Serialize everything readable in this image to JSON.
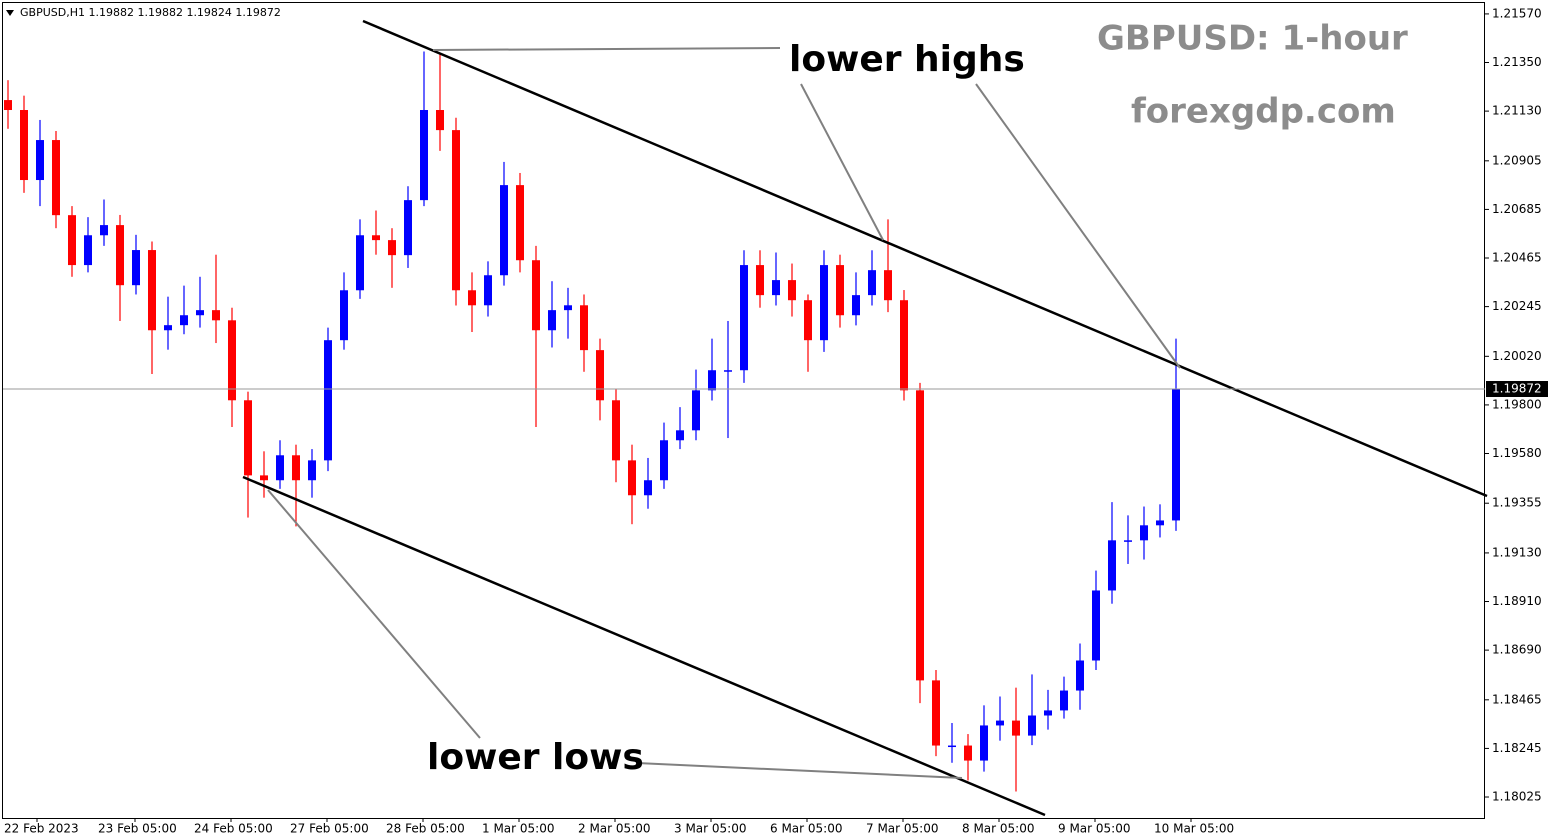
{
  "chart_data": {
    "type": "candlestick",
    "header": "GBPUSD,H1  1.19882 1.19882 1.19824 1.19872",
    "title": "GBPUSD: 1-hour",
    "subtitle": "forexgdp.com",
    "annotations": [
      "lower highs",
      "lower lows"
    ],
    "up_color": "#0000ff",
    "down_color": "#ff0000",
    "last_price": 1.19872,
    "ylim": [
      1.1793,
      1.21633
    ],
    "yticks": [
      {
        "value": 1.2157,
        "label": "1.21570"
      },
      {
        "value": 1.2135,
        "label": "1.21350"
      },
      {
        "value": 1.2113,
        "label": "1.21130"
      },
      1.20905,
      1.20685,
      1.20465,
      1.20245,
      {
        "value": 1.2002,
        "label": "1.20020"
      },
      {
        "value": 1.198,
        "label": "1.19800"
      },
      {
        "value": 1.1958,
        "label": "1.19580"
      },
      1.19355,
      {
        "value": 1.1913,
        "label": "1.19130"
      },
      {
        "value": 1.1891,
        "label": "1.18910"
      },
      {
        "value": 1.1869,
        "label": "1.18690"
      },
      1.18465,
      1.18245,
      1.18025
    ],
    "x_labels": [
      "22 Feb 2023",
      "23 Feb 05:00",
      "24 Feb 05:00",
      "27 Feb 05:00",
      "28 Feb 05:00",
      "1 Mar 05:00",
      "2 Mar 05:00",
      "3 Mar 05:00",
      "6 Mar 05:00",
      "7 Mar 05:00",
      "8 Mar 05:00",
      "9 Mar 05:00",
      "10 Mar 05:00"
    ],
    "candles": [
      [
        1.2118,
        1.2127,
        1.2105,
        1.21135
      ],
      [
        1.21135,
        1.212,
        1.2076,
        1.20818
      ],
      [
        1.20818,
        1.2109,
        1.207,
        1.20999
      ],
      [
        1.20999,
        1.2104,
        1.206,
        1.20659
      ],
      [
        1.20659,
        1.207,
        1.2038,
        1.20433
      ],
      [
        1.20433,
        1.2065,
        1.204,
        1.20568
      ],
      [
        1.20568,
        1.2073,
        1.2052,
        1.20614
      ],
      [
        1.20614,
        1.2066,
        1.2018,
        1.20342
      ],
      [
        1.20342,
        1.2057,
        1.203,
        1.20501
      ],
      [
        1.20501,
        1.2054,
        1.1994,
        1.20138
      ],
      [
        1.20138,
        1.2029,
        1.2005,
        1.20161
      ],
      [
        1.20161,
        1.2034,
        1.2012,
        1.20206
      ],
      [
        1.20206,
        1.2038,
        1.2015,
        1.20229
      ],
      [
        1.20229,
        1.2048,
        1.2008,
        1.20183
      ],
      [
        1.20183,
        1.2024,
        1.197,
        1.19821
      ],
      [
        1.19821,
        1.1986,
        1.1929,
        1.19481
      ],
      [
        1.19481,
        1.1959,
        1.1938,
        1.19459
      ],
      [
        1.19459,
        1.1964,
        1.1942,
        1.19572
      ],
      [
        1.19572,
        1.1962,
        1.1925,
        1.19459
      ],
      [
        1.19459,
        1.196,
        1.1938,
        1.19549
      ],
      [
        1.19549,
        1.2015,
        1.195,
        1.20093
      ],
      [
        1.20093,
        1.204,
        1.2005,
        1.20319
      ],
      [
        1.20319,
        1.2064,
        1.2028,
        1.20568
      ],
      [
        1.20568,
        1.2068,
        1.2048,
        1.20546
      ],
      [
        1.20546,
        1.206,
        1.2033,
        1.20478
      ],
      [
        1.20478,
        1.2079,
        1.2042,
        1.20727
      ],
      [
        1.20727,
        1.214,
        1.207,
        1.21135
      ],
      [
        1.21135,
        1.2139,
        1.2095,
        1.21044
      ],
      [
        1.21044,
        1.211,
        1.2025,
        1.20319
      ],
      [
        1.20319,
        1.204,
        1.2013,
        1.20251
      ],
      [
        1.20251,
        1.2045,
        1.202,
        1.20387
      ],
      [
        1.20387,
        1.209,
        1.2034,
        1.20795
      ],
      [
        1.20795,
        1.2085,
        1.204,
        1.20455
      ],
      [
        1.20455,
        1.2052,
        1.197,
        1.20138
      ],
      [
        1.20138,
        1.2036,
        1.2006,
        1.20229
      ],
      [
        1.20229,
        1.2033,
        1.201,
        1.20251
      ],
      [
        1.20251,
        1.203,
        1.1995,
        1.20048
      ],
      [
        1.20048,
        1.201,
        1.1973,
        1.19821
      ],
      [
        1.19821,
        1.1987,
        1.1945,
        1.19549
      ],
      [
        1.19549,
        1.1962,
        1.1926,
        1.19391
      ],
      [
        1.19391,
        1.1956,
        1.1933,
        1.19459
      ],
      [
        1.19459,
        1.1972,
        1.1942,
        1.1964
      ],
      [
        1.1964,
        1.1979,
        1.196,
        1.19685
      ],
      [
        1.19685,
        1.1996,
        1.1964,
        1.19866
      ],
      [
        1.19866,
        1.201,
        1.1982,
        1.19957
      ],
      [
        1.19957,
        1.2018,
        1.1965,
        1.19957
      ],
      [
        1.19957,
        1.205,
        1.199,
        1.20433
      ],
      [
        1.20433,
        1.205,
        1.2024,
        1.20297
      ],
      [
        1.20297,
        1.2049,
        1.2025,
        1.20365
      ],
      [
        1.20365,
        1.2044,
        1.202,
        1.20274
      ],
      [
        1.20274,
        1.203,
        1.1995,
        1.20093
      ],
      [
        1.20093,
        1.205,
        1.2004,
        1.20433
      ],
      [
        1.20433,
        1.2048,
        1.2015,
        1.20206
      ],
      [
        1.20206,
        1.204,
        1.2016,
        1.20297
      ],
      [
        1.20297,
        1.205,
        1.2025,
        1.2041
      ],
      [
        1.2041,
        1.2064,
        1.2022,
        1.20274
      ],
      [
        1.20274,
        1.2032,
        1.1982,
        1.19866
      ],
      [
        1.19866,
        1.199,
        1.1845,
        1.18553
      ],
      [
        1.18553,
        1.186,
        1.1821,
        1.18258
      ],
      [
        1.18258,
        1.1836,
        1.1818,
        1.18258
      ],
      [
        1.18258,
        1.1831,
        1.181,
        1.1819
      ],
      [
        1.1819,
        1.1844,
        1.1814,
        1.18349
      ],
      [
        1.18349,
        1.1848,
        1.1828,
        1.18371
      ],
      [
        1.18371,
        1.1852,
        1.1805,
        1.18303
      ],
      [
        1.18303,
        1.1858,
        1.1826,
        1.18394
      ],
      [
        1.18394,
        1.1851,
        1.1833,
        1.18417
      ],
      [
        1.18417,
        1.1857,
        1.1838,
        1.18507
      ],
      [
        1.18507,
        1.1872,
        1.1842,
        1.18643
      ],
      [
        1.18643,
        1.1905,
        1.186,
        1.1896
      ],
      [
        1.1896,
        1.1936,
        1.189,
        1.19187
      ],
      [
        1.19187,
        1.193,
        1.1908,
        1.19187
      ],
      [
        1.19187,
        1.1934,
        1.191,
        1.19255
      ],
      [
        1.19255,
        1.1935,
        1.192,
        1.19277
      ],
      [
        1.19277,
        1.201,
        1.1923,
        1.19872
      ]
    ]
  }
}
